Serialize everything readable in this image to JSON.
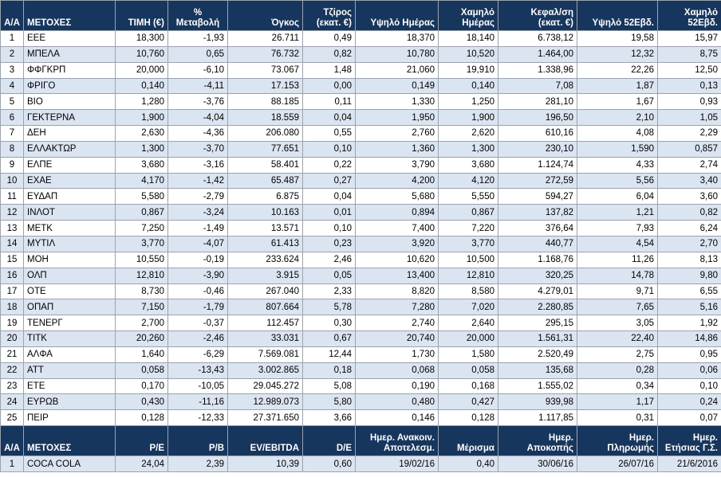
{
  "header": {
    "aa": "Α/Α",
    "name": "ΜΕΤΟΧΕΣ",
    "price": "ΤΙΜΗ (€)",
    "change_l1": "%",
    "change_l2": "Μεταβολή",
    "volume": "Όγκος",
    "turnover_l1": "Τζίρος",
    "turnover_l2": "(εκατ. €)",
    "day_high": "Υψηλό Ημέρας",
    "day_low_l1": "Χαμηλό",
    "day_low_l2": "Ημέρας",
    "cap_l1": "Κεφαλ/ση",
    "cap_l2": "(εκατ. €)",
    "high52": "Υψηλό 52Εβδ.",
    "low52_l1": "Χαμηλό",
    "low52_l2": "52Εβδ."
  },
  "rows": [
    [
      "1",
      "ΕΕΕ",
      "18,300",
      "-1,93",
      "26.711",
      "0,49",
      "18,370",
      "18,140",
      "6.738,12",
      "19,58",
      "15,97"
    ],
    [
      "2",
      "ΜΠΕΛΑ",
      "10,760",
      "0,65",
      "76.732",
      "0,82",
      "10,780",
      "10,520",
      "1.464,00",
      "12,32",
      "8,75"
    ],
    [
      "3",
      "ΦΦΓΚΡΠ",
      "20,000",
      "-6,10",
      "73.067",
      "1,48",
      "21,060",
      "19,910",
      "1.338,96",
      "22,26",
      "12,50"
    ],
    [
      "4",
      "ΦΡΙΓΟ",
      "0,140",
      "-4,11",
      "17.153",
      "0,00",
      "0,149",
      "0,140",
      "7,08",
      "1,87",
      "0,13"
    ],
    [
      "5",
      "ΒΙΟ",
      "1,280",
      "-3,76",
      "88.185",
      "0,11",
      "1,330",
      "1,250",
      "281,10",
      "1,67",
      "0,93"
    ],
    [
      "6",
      "ΓΕΚΤΕΡΝΑ",
      "1,900",
      "-4,04",
      "18.559",
      "0,04",
      "1,950",
      "1,900",
      "196,50",
      "2,10",
      "1,05"
    ],
    [
      "7",
      "ΔΕΗ",
      "2,630",
      "-4,36",
      "206.080",
      "0,55",
      "2,760",
      "2,620",
      "610,16",
      "4,08",
      "2,29"
    ],
    [
      "8",
      "ΕΛΛΑΚΤΩΡ",
      "1,300",
      "-3,70",
      "77.651",
      "0,10",
      "1,360",
      "1,300",
      "230,10",
      "1,590",
      "0,857"
    ],
    [
      "9",
      "ΕΛΠΕ",
      "3,680",
      "-3,16",
      "58.401",
      "0,22",
      "3,790",
      "3,680",
      "1.124,74",
      "4,33",
      "2,74"
    ],
    [
      "10",
      "ΕΧΑΕ",
      "4,170",
      "-1,42",
      "65.487",
      "0,27",
      "4,200",
      "4,120",
      "272,59",
      "5,56",
      "3,40"
    ],
    [
      "11",
      "ΕΥΔΑΠ",
      "5,580",
      "-2,79",
      "6.875",
      "0,04",
      "5,680",
      "5,550",
      "594,27",
      "6,04",
      "3,60"
    ],
    [
      "12",
      "ΙΝΛΟΤ",
      "0,867",
      "-3,24",
      "10.163",
      "0,01",
      "0,894",
      "0,867",
      "137,82",
      "1,21",
      "0,82"
    ],
    [
      "13",
      "ΜΕΤΚ",
      "7,250",
      "-1,49",
      "13.571",
      "0,10",
      "7,400",
      "7,220",
      "376,64",
      "7,93",
      "6,24"
    ],
    [
      "14",
      "ΜΥΤΙΛ",
      "3,770",
      "-4,07",
      "61.413",
      "0,23",
      "3,920",
      "3,770",
      "440,77",
      "4,54",
      "2,70"
    ],
    [
      "15",
      "ΜΟΗ",
      "10,550",
      "-0,19",
      "233.624",
      "2,46",
      "10,620",
      "10,500",
      "1.168,76",
      "11,26",
      "8,13"
    ],
    [
      "16",
      "ΟΛΠ",
      "12,810",
      "-3,90",
      "3.915",
      "0,05",
      "13,400",
      "12,810",
      "320,25",
      "14,78",
      "9,80"
    ],
    [
      "17",
      "ΟΤΕ",
      "8,730",
      "-0,46",
      "267.040",
      "2,33",
      "8,820",
      "8,580",
      "4.279,01",
      "9,71",
      "6,55"
    ],
    [
      "18",
      "ΟΠΑΠ",
      "7,150",
      "-1,79",
      "807.664",
      "5,78",
      "7,280",
      "7,020",
      "2.280,85",
      "7,65",
      "5,16"
    ],
    [
      "19",
      "ΤΕΝΕΡΓ",
      "2,700",
      "-0,37",
      "112.457",
      "0,30",
      "2,740",
      "2,640",
      "295,15",
      "3,05",
      "1,92"
    ],
    [
      "20",
      "ΤΙΤΚ",
      "20,260",
      "-2,46",
      "33.031",
      "0,67",
      "20,740",
      "20,000",
      "1.561,31",
      "22,40",
      "14,86"
    ],
    [
      "21",
      "ΑΛΦΑ",
      "1,640",
      "-6,29",
      "7.569.081",
      "12,44",
      "1,730",
      "1,580",
      "2.520,49",
      "2,75",
      "0,95"
    ],
    [
      "22",
      "ΑΤΤ",
      "0,058",
      "-13,43",
      "3.002.865",
      "0,18",
      "0,068",
      "0,058",
      "135,68",
      "0,28",
      "0,06"
    ],
    [
      "23",
      "ΕΤΕ",
      "0,170",
      "-10,05",
      "29.045.272",
      "5,08",
      "0,190",
      "0,168",
      "1.555,02",
      "0,34",
      "0,10"
    ],
    [
      "24",
      "ΕΥΡΩΒ",
      "0,430",
      "-11,16",
      "12.989.073",
      "5,80",
      "0,480",
      "0,427",
      "939,98",
      "1,17",
      "0,24"
    ],
    [
      "25",
      "ΠΕΙΡ",
      "0,128",
      "-12,33",
      "27.371.650",
      "3,66",
      "0,146",
      "0,128",
      "1.117,85",
      "0,31",
      "0,07"
    ]
  ],
  "header2": {
    "aa": "Α/Α",
    "name": "ΜΕΤΟΧΕΣ",
    "pe": "P/E",
    "pb": "P/B",
    "ev": "EV/EBITDA",
    "de": "D/E",
    "results_l1": "Ημερ. Ανακοιν.",
    "results_l2": "Αποτελεσμ.",
    "dividend": "Μέρισμα",
    "exdate_l1": "Ημερ.",
    "exdate_l2": "Αποκοπής",
    "paydate_l1": "Ημερ.",
    "paydate_l2": "Πληρωμής",
    "agm_l1": "Ημερ.",
    "agm_l2": "Ετήσιας Γ.Σ."
  },
  "row2": [
    "1",
    "COCA COLA",
    "24,04",
    "2,39",
    "10,39",
    "0,60",
    "19/02/16",
    "0,40",
    "30/06/16",
    "26/07/16",
    "21/6/2016"
  ]
}
